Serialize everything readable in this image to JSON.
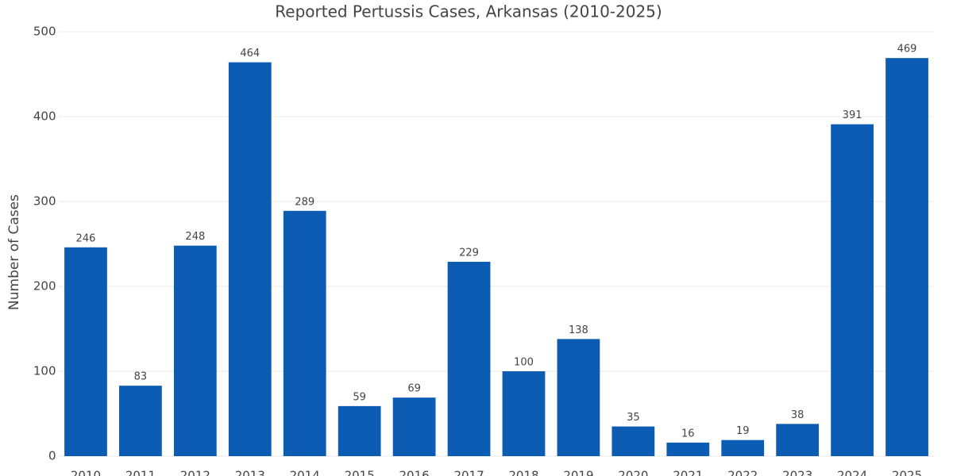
{
  "chart_data": {
    "type": "bar",
    "title": "Reported Pertussis Cases, Arkansas (2010-2025)",
    "y_label": "Number of Cases",
    "categories": [
      "2010",
      "2011",
      "2012",
      "2013",
      "2014",
      "2015",
      "2016",
      "2017",
      "2018",
      "2019",
      "2020",
      "2021",
      "2022",
      "2023",
      "2024",
      "2025"
    ],
    "values": [
      246,
      83,
      248,
      464,
      289,
      59,
      69,
      229,
      100,
      138,
      35,
      16,
      19,
      38,
      391,
      469
    ],
    "color": "#0b5cb2",
    "ylim": [
      0,
      500
    ],
    "yticks": [
      0,
      100,
      200,
      300,
      400,
      500
    ],
    "grid": true
  }
}
